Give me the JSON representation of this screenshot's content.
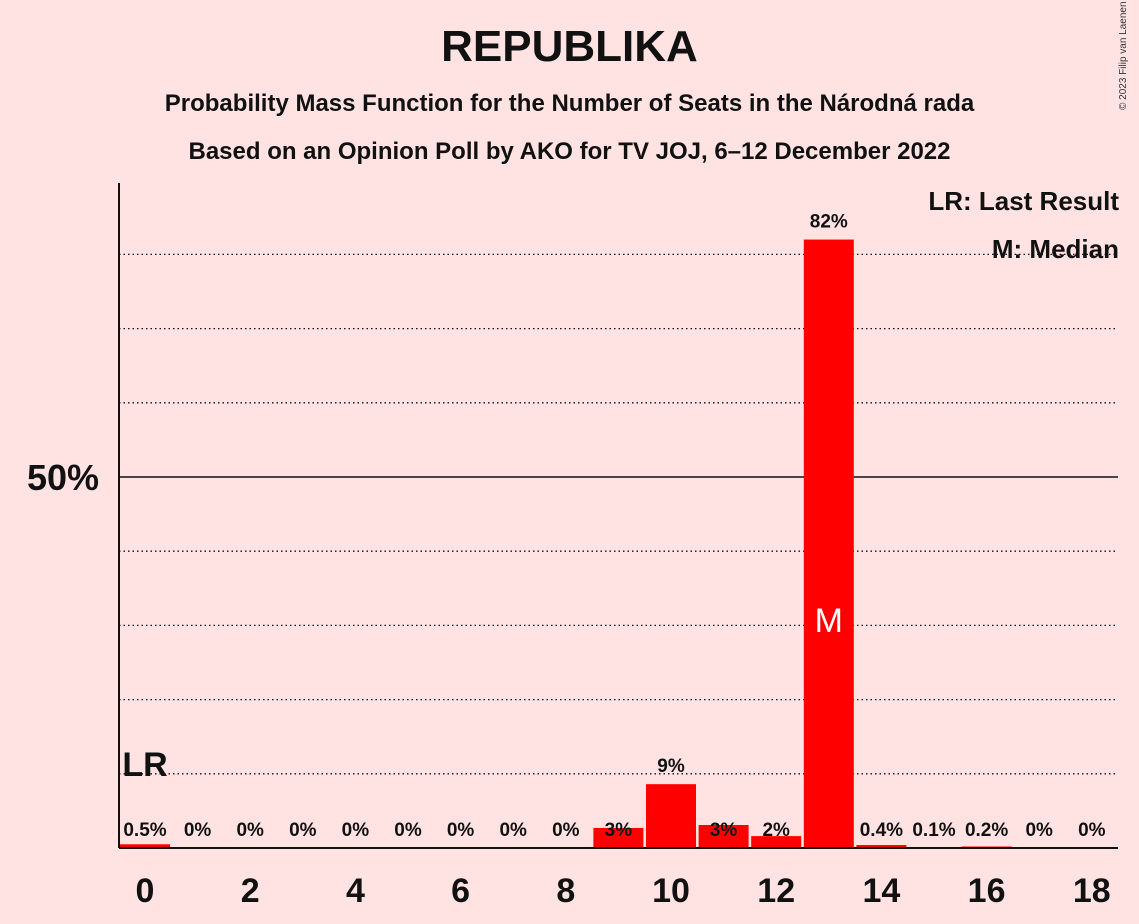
{
  "title": "REPUBLIKA",
  "subtitle_1": "Probability Mass Function for the Number of Seats in the Národná rada",
  "subtitle_2": "Based on an Opinion Poll by AKO for TV JOJ, 6–12 December 2022",
  "copyright": "© 2023 Filip van Laenen",
  "legend": {
    "last_result": "LR: Last Result",
    "median": "M: Median"
  },
  "colors": {
    "background": "#ffe3e3",
    "bar": "#ff0000",
    "text": "#111111"
  },
  "chart_data": {
    "type": "bar",
    "x": [
      0,
      1,
      2,
      3,
      4,
      5,
      6,
      7,
      8,
      9,
      10,
      11,
      12,
      13,
      14,
      15,
      16,
      17,
      18
    ],
    "values": [
      0.5,
      0,
      0,
      0,
      0,
      0,
      0,
      0,
      0,
      2.7,
      8.6,
      3.1,
      1.6,
      82,
      0.4,
      0.1,
      0.2,
      0,
      0
    ],
    "data_labels": [
      "0.5%",
      "0%",
      "0%",
      "0%",
      "0%",
      "0%",
      "0%",
      "0%",
      "0%",
      "3%",
      "9%",
      "3%",
      "2%",
      "82%",
      "0.4%",
      "0.1%",
      "0.2%",
      "0%",
      "0%"
    ],
    "x_tick_labels": [
      "0",
      "2",
      "4",
      "6",
      "8",
      "10",
      "12",
      "14",
      "16",
      "18"
    ],
    "x_ticks": [
      0,
      2,
      4,
      6,
      8,
      10,
      12,
      14,
      16,
      18
    ],
    "y_tick_label": "50%",
    "y_tick_value": 50,
    "ylim": [
      0,
      90
    ],
    "gridlines": [
      10,
      20,
      30,
      40,
      60,
      70,
      80
    ],
    "last_result_seat": 0,
    "last_result_label": "LR",
    "median_seat": 13,
    "median_label": "M"
  }
}
